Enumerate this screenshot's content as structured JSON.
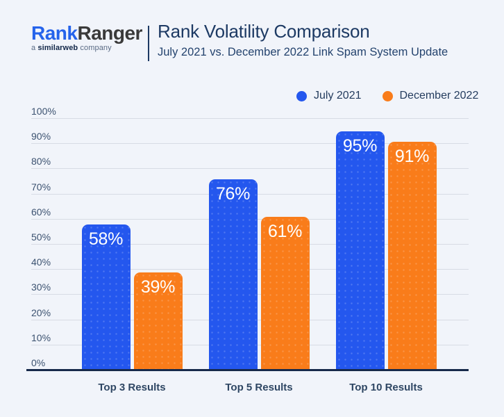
{
  "page": {
    "background": "#f1f4fa"
  },
  "header": {
    "logo": {
      "part1": "Rank",
      "part2": "Ranger",
      "sub_prefix": "a ",
      "sub_bold": "similarweb",
      "sub_suffix": " company"
    },
    "title": "Rank Volatility Comparison",
    "subtitle": "July 2021 vs. December 2022 Link Spam System Update"
  },
  "chart_data": {
    "type": "bar",
    "title": "Rank Volatility Comparison",
    "subtitle": "July 2021 vs. December 2022 Link Spam System Update",
    "categories": [
      "Top 3 Results",
      "Top 5 Results",
      "Top 10 Results"
    ],
    "series": [
      {
        "name": "July 2021",
        "color": "#2457ee",
        "values": [
          58,
          76,
          95
        ],
        "labels": [
          "58%",
          "76%",
          "95%"
        ]
      },
      {
        "name": "December 2022",
        "color": "#f97c1a",
        "values": [
          39,
          61,
          91
        ],
        "labels": [
          "39%",
          "61%",
          "91%"
        ]
      }
    ],
    "yticks": [
      "0%",
      "10%",
      "20%",
      "30%",
      "40%",
      "50%",
      "60%",
      "70%",
      "80%",
      "90%",
      "100%"
    ],
    "ylim": [
      0,
      100
    ],
    "grid": "horizontal",
    "legend_position": "top-right",
    "value_label_color": "#ffffff",
    "axis_color": "#16294a",
    "gridline_color": "#d7dbe4"
  }
}
